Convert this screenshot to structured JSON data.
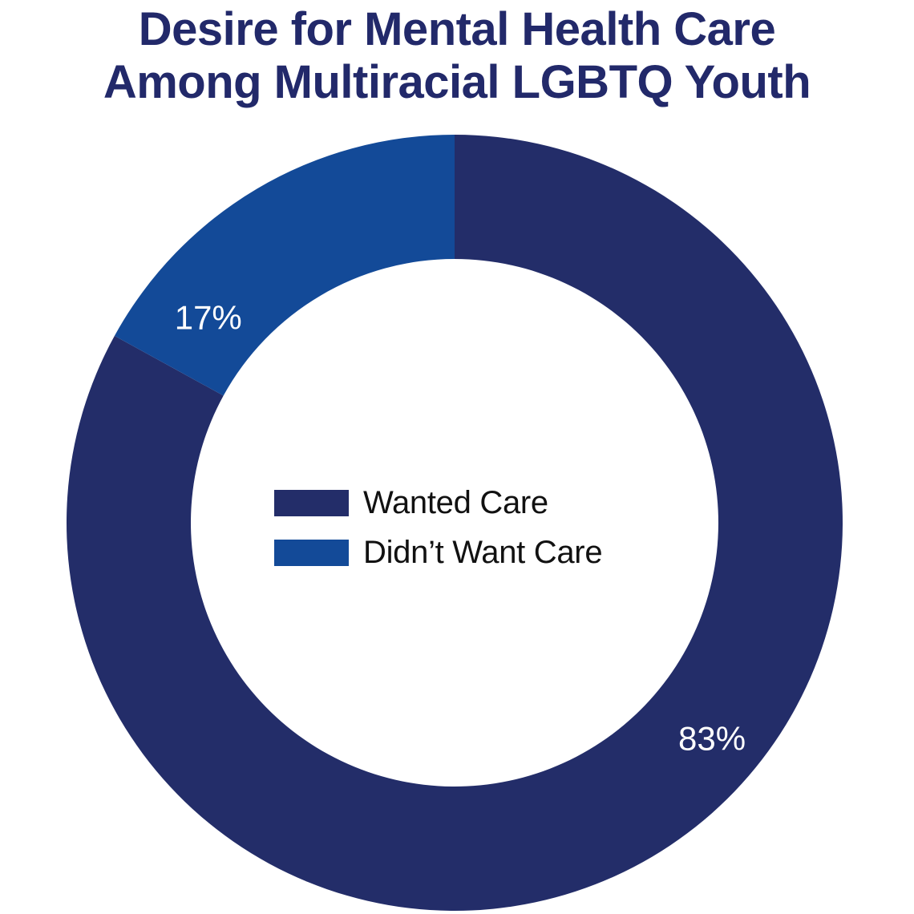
{
  "chart_data": {
    "type": "pie",
    "title_lines": [
      "Desire for Mental Health Care",
      "Among Multiracial LGBTQ Youth"
    ],
    "donut": true,
    "categories": [
      "Wanted Care",
      "Didn’t Want Care"
    ],
    "values": [
      83,
      17
    ],
    "data_labels": [
      "83%",
      "17%"
    ],
    "colors": [
      "#232d69",
      "#134a98"
    ],
    "label_color": "#ffffff",
    "legend_position": "center"
  }
}
